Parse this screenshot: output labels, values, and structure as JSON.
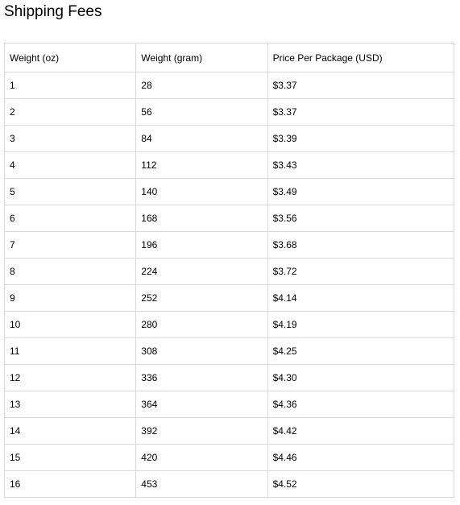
{
  "page": {
    "title": "Shipping Fees"
  },
  "table": {
    "headers": [
      "Weight (oz)",
      "Weight (gram)",
      "Price Per Package (USD)"
    ],
    "rows": [
      {
        "oz": "1",
        "gram": "28",
        "price": "$3.37"
      },
      {
        "oz": "2",
        "gram": "56",
        "price": "$3.37"
      },
      {
        "oz": "3",
        "gram": "84",
        "price": "$3.39"
      },
      {
        "oz": "4",
        "gram": "112",
        "price": "$3.43"
      },
      {
        "oz": "5",
        "gram": "140",
        "price": "$3.49"
      },
      {
        "oz": "6",
        "gram": "168",
        "price": "$3.56"
      },
      {
        "oz": "7",
        "gram": "196",
        "price": "$3.68"
      },
      {
        "oz": "8",
        "gram": "224",
        "price": "$3.72"
      },
      {
        "oz": "9",
        "gram": "252",
        "price": "$4.14"
      },
      {
        "oz": "10",
        "gram": "280",
        "price": "$4.19"
      },
      {
        "oz": "11",
        "gram": "308",
        "price": "$4.25"
      },
      {
        "oz": "12",
        "gram": "336",
        "price": "$4.30"
      },
      {
        "oz": "13",
        "gram": "364",
        "price": "$4.36"
      },
      {
        "oz": "14",
        "gram": "392",
        "price": "$4.42"
      },
      {
        "oz": "15",
        "gram": "420",
        "price": "$4.46"
      },
      {
        "oz": "16",
        "gram": "453",
        "price": "$4.52"
      }
    ]
  }
}
